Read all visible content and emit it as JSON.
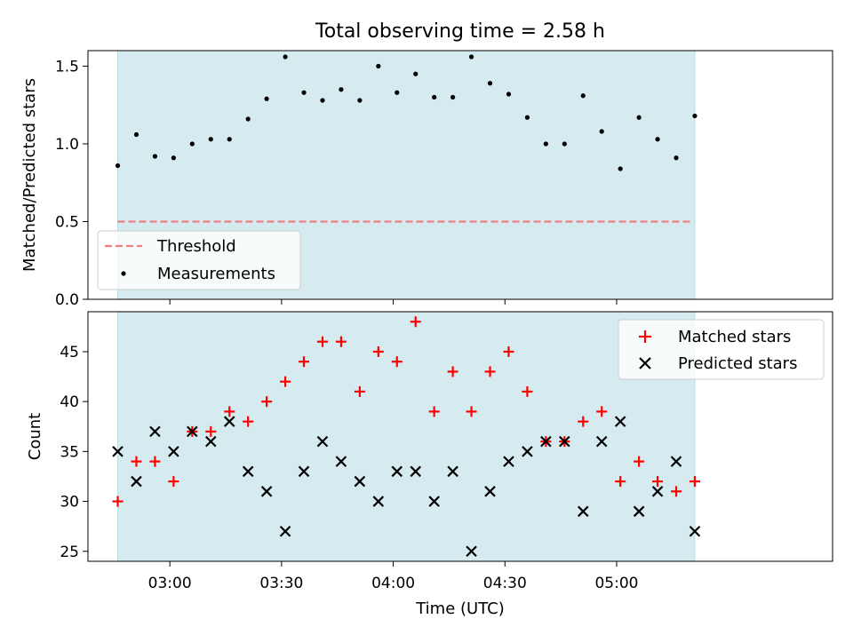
{
  "title": "Total observing time = 2.58 h",
  "chart_data": [
    {
      "type": "scatter",
      "ylabel": "Matched/Predicted stars",
      "xlim": [
        "02:38",
        "05:58"
      ],
      "ylim": [
        0,
        1.6
      ],
      "yticks": [
        0.0,
        0.5,
        1.0,
        1.5
      ],
      "ytick_labels": [
        "0.0",
        "0.5",
        "1.0",
        "1.5"
      ],
      "observing_window": [
        "02:46",
        "05:21"
      ],
      "threshold": {
        "name": "Threshold",
        "y": 0.5,
        "color": "#f08080",
        "style": "dashed"
      },
      "series": [
        {
          "name": "Measurements",
          "color": "#000000",
          "x": [
            "02:46",
            "02:51",
            "02:56",
            "03:01",
            "03:06",
            "03:11",
            "03:16",
            "03:21",
            "03:26",
            "03:31",
            "03:36",
            "03:41",
            "03:46",
            "03:51",
            "03:56",
            "04:01",
            "04:06",
            "04:11",
            "04:16",
            "04:21",
            "04:26",
            "04:31",
            "04:36",
            "04:41",
            "04:46",
            "04:51",
            "04:56",
            "05:01",
            "05:06",
            "05:11",
            "05:16",
            "05:21"
          ],
          "y": [
            0.86,
            1.06,
            0.92,
            0.91,
            1.0,
            1.03,
            1.03,
            1.16,
            1.29,
            1.56,
            1.33,
            1.28,
            1.35,
            1.28,
            1.5,
            1.33,
            1.45,
            1.3,
            1.3,
            1.56,
            1.39,
            1.32,
            1.17,
            1.0,
            1.0,
            1.31,
            1.08,
            0.84,
            1.17,
            1.03,
            0.91,
            1.18
          ]
        }
      ],
      "legend": {
        "location": "lower-left",
        "entries": [
          "Threshold",
          "Measurements"
        ]
      }
    },
    {
      "type": "scatter",
      "xlabel": "Time (UTC)",
      "ylabel": "Count",
      "xlim": [
        "02:38",
        "05:58"
      ],
      "ylim": [
        24,
        49
      ],
      "yticks": [
        25,
        30,
        35,
        40,
        45
      ],
      "ytick_labels": [
        "25",
        "30",
        "35",
        "40",
        "45"
      ],
      "xticks": [
        "03:00",
        "03:30",
        "04:00",
        "04:30",
        "05:00"
      ],
      "observing_window": [
        "02:46",
        "05:21"
      ],
      "x": [
        "02:46",
        "02:51",
        "02:56",
        "03:01",
        "03:06",
        "03:11",
        "03:16",
        "03:21",
        "03:26",
        "03:31",
        "03:36",
        "03:41",
        "03:46",
        "03:51",
        "03:56",
        "04:01",
        "04:06",
        "04:11",
        "04:16",
        "04:21",
        "04:26",
        "04:31",
        "04:36",
        "04:41",
        "04:46",
        "04:51",
        "04:56",
        "05:01",
        "05:06",
        "05:11",
        "05:16",
        "05:21"
      ],
      "series": [
        {
          "name": "Matched stars",
          "marker": "plus",
          "color": "#ff0000",
          "values": [
            30,
            34,
            34,
            32,
            37,
            37,
            39,
            38,
            40,
            42,
            44,
            46,
            46,
            41,
            45,
            44,
            48,
            39,
            43,
            39,
            43,
            45,
            41,
            36,
            36,
            38,
            39,
            32,
            34,
            32,
            31,
            32
          ]
        },
        {
          "name": "Predicted stars",
          "marker": "x",
          "color": "#000000",
          "values": [
            35,
            32,
            37,
            35,
            37,
            36,
            38,
            33,
            31,
            27,
            33,
            36,
            34,
            32,
            30,
            33,
            33,
            30,
            33,
            25,
            31,
            34,
            35,
            36,
            36,
            29,
            36,
            38,
            29,
            31,
            34,
            27
          ]
        }
      ],
      "legend": {
        "location": "top-right",
        "entries": [
          "Matched stars",
          "Predicted stars"
        ]
      }
    }
  ],
  "colors": {
    "observing_band": "#d5ebf0",
    "band_edge": "#b9dde6"
  }
}
